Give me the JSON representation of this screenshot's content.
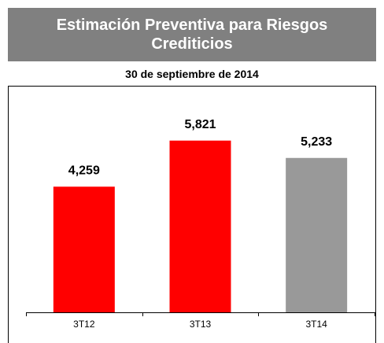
{
  "chart_data": {
    "type": "bar",
    "title": "Estimación Preventiva para Riesgos Crediticios",
    "subtitle": "30 de septiembre de 2014",
    "categories": [
      "3T12",
      "3T13",
      "3T14"
    ],
    "values": [
      4259,
      5821,
      5233
    ],
    "value_labels": [
      "4,259",
      "5,821",
      "5,233"
    ],
    "colors": [
      "#ff0000",
      "#ff0000",
      "#999999"
    ],
    "ylim": [
      0,
      7600
    ]
  }
}
